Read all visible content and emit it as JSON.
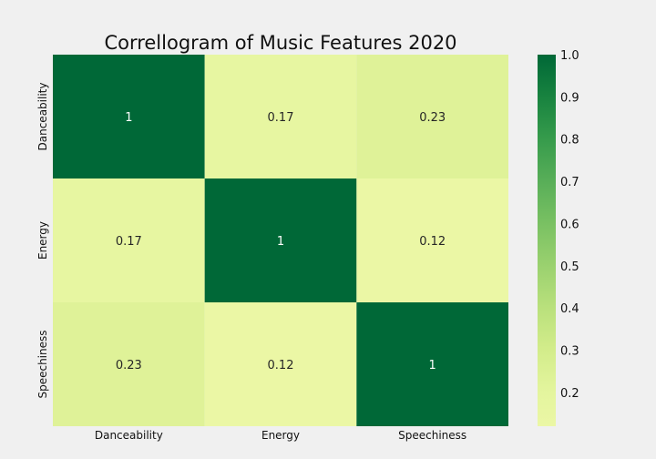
{
  "chart_data": {
    "type": "heatmap",
    "title": "Correllogram of Music Features 2020",
    "xlabel": "",
    "ylabel": "",
    "x_categories": [
      "Danceability",
      "Energy",
      "Speechiness"
    ],
    "y_categories": [
      "Danceability",
      "Energy",
      "Speechiness"
    ],
    "values": [
      [
        1,
        0.17,
        0.23
      ],
      [
        0.17,
        1,
        0.12
      ],
      [
        0.23,
        0.12,
        1
      ]
    ],
    "cell_labels": [
      [
        "1",
        "0.17",
        "0.23"
      ],
      [
        "0.17",
        "1",
        "0.12"
      ],
      [
        "0.23",
        "0.12",
        "1"
      ]
    ],
    "colormap": "YlGn",
    "colorbar": {
      "range": [
        0.12,
        1.0
      ],
      "ticks": [
        0.2,
        0.3,
        0.4,
        0.5,
        0.6,
        0.7,
        0.8,
        0.9,
        1.0
      ],
      "tick_labels": [
        "0.2",
        "0.3",
        "0.4",
        "0.5",
        "0.6",
        "0.7",
        "0.8",
        "0.9",
        "1.0"
      ]
    },
    "background_color": "#f0f0f0",
    "grid": false
  }
}
